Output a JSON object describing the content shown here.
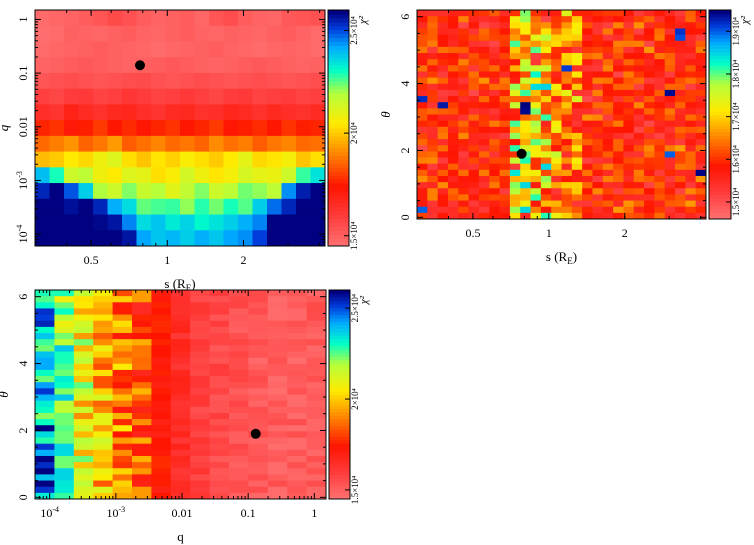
{
  "chart_data": [
    {
      "id": "s_q",
      "type": "heatmap",
      "xlabel": "s (R",
      "xlabel_sub": "E",
      "xlabel_close": ")",
      "ylabel": "q",
      "xscale": "log",
      "yscale": "log",
      "xlim": [
        0.3,
        4.2
      ],
      "ylim": [
        6e-05,
        1.5
      ],
      "x_ticks": [
        0.5,
        1,
        2
      ],
      "x_tick_labels": [
        "0.5",
        "1",
        "2"
      ],
      "y_ticks": [
        0.0001,
        0.001,
        0.01,
        0.1,
        1
      ],
      "y_tick_labels": [
        [
          "10",
          "-4"
        ],
        [
          "10",
          "-3"
        ],
        [
          "0.01",
          ""
        ],
        [
          "0.1",
          ""
        ],
        [
          "1",
          ""
        ]
      ],
      "best_fit": {
        "x": 0.78,
        "y": 0.14
      },
      "colorbar": {
        "label": "χ²",
        "min": 14500,
        "max": 26000,
        "tick_values": [
          15000,
          20000,
          25000
        ],
        "tick_labels": [
          "1.5×10⁴",
          "2×10⁴",
          "2.5×10⁴"
        ]
      },
      "grid": {
        "nx": 20,
        "ny": 15,
        "x_start": 0.3,
        "x_end": 4.2,
        "y_start": 6e-05,
        "y_end": 1.5,
        "values": [
          [
            14600,
            14700,
            14800,
            15000,
            15200,
            15500,
            15300,
            15000,
            14800,
            14900,
            15000,
            14700,
            15200,
            15400,
            15000,
            14800,
            14700,
            15100,
            15200,
            15300
          ],
          [
            14500,
            14600,
            14900,
            14800,
            14700,
            14900,
            15000,
            14800,
            14700,
            14900,
            15000,
            14800,
            14700,
            14900,
            14800,
            14700,
            14900,
            15000,
            14800,
            14600
          ],
          [
            14600,
            14700,
            14800,
            14900,
            15000,
            14900,
            14800,
            14700,
            14600,
            14700,
            14800,
            14900,
            15000,
            14800,
            14700,
            14600,
            14700,
            14800,
            14700,
            14600
          ],
          [
            14800,
            14900,
            15000,
            15100,
            15000,
            14900,
            14800,
            14900,
            15000,
            15100,
            15000,
            14900,
            14800,
            14900,
            15000,
            15100,
            15000,
            14900,
            14800,
            14900
          ],
          [
            15200,
            15300,
            15400,
            15300,
            15200,
            15300,
            15400,
            15500,
            15300,
            15200,
            15300,
            15400,
            15300,
            15200,
            15300,
            15400,
            15300,
            15200,
            15300,
            15400
          ],
          [
            15800,
            15600,
            15900,
            16000,
            15700,
            15800,
            16100,
            15900,
            15700,
            15800,
            16000,
            15800,
            15600,
            15900,
            16000,
            15700,
            15800,
            15900,
            15700,
            15800
          ],
          [
            16400,
            16200,
            16800,
            16500,
            16300,
            16600,
            16700,
            16400,
            16200,
            16500,
            16600,
            16300,
            16400,
            16700,
            16500,
            16300,
            16600,
            16400,
            16300,
            16500
          ],
          [
            17600,
            17800,
            17200,
            17500,
            17900,
            17400,
            17700,
            17300,
            17600,
            17800,
            17400,
            17600,
            17900,
            17300,
            17500,
            17700,
            17400,
            17800,
            17500,
            17600
          ],
          [
            18600,
            18900,
            19200,
            18500,
            18800,
            19300,
            18400,
            18700,
            19000,
            18600,
            18800,
            18500,
            19100,
            18700,
            18900,
            18400,
            18800,
            19000,
            18600,
            18700
          ],
          [
            19800,
            20000,
            20500,
            20200,
            20800,
            21200,
            20300,
            19900,
            20400,
            20100,
            20600,
            20300,
            20000,
            20500,
            21000,
            20200,
            20400,
            20700,
            19900,
            20300
          ],
          [
            24000,
            23000,
            21500,
            21800,
            20800,
            20500,
            21200,
            21000,
            20300,
            20600,
            21400,
            20800,
            20400,
            20700,
            21300,
            21000,
            20900,
            21500,
            22800,
            23500
          ],
          [
            25500,
            26000,
            25000,
            23800,
            22000,
            21500,
            22300,
            21600,
            21900,
            21100,
            21700,
            22300,
            21500,
            21800,
            22400,
            22200,
            21800,
            24500,
            25600,
            26000
          ],
          [
            26000,
            26000,
            25800,
            26000,
            25500,
            24200,
            23600,
            22500,
            22700,
            22800,
            22200,
            22900,
            22400,
            23000,
            22600,
            23800,
            24800,
            25500,
            26000,
            26000
          ],
          [
            26000,
            26000,
            26000,
            26000,
            25900,
            25700,
            24600,
            23600,
            23900,
            23400,
            23700,
            23200,
            23500,
            23800,
            24200,
            24600,
            26000,
            26000,
            26000,
            26000
          ],
          [
            26000,
            26000,
            26000,
            26000,
            26000,
            26000,
            25700,
            24300,
            23900,
            24100,
            23800,
            24200,
            23900,
            24300,
            24500,
            25200,
            26000,
            26000,
            26000,
            26000
          ]
        ]
      }
    },
    {
      "id": "s_theta",
      "type": "heatmap",
      "xlabel": "s (R",
      "xlabel_sub": "E",
      "xlabel_close": ")",
      "ylabel": "θ",
      "xscale": "log",
      "yscale": "linear",
      "xlim": [
        0.3,
        4.2
      ],
      "ylim": [
        -0.05,
        6.2
      ],
      "x_ticks": [
        0.5,
        1,
        2
      ],
      "x_tick_labels": [
        "0.5",
        "1",
        "2"
      ],
      "y_ticks": [
        0,
        2,
        4,
        6
      ],
      "y_tick_labels": [
        "0",
        "2",
        "4",
        "6"
      ],
      "best_fit": {
        "x": 0.78,
        "y": 1.9
      },
      "colorbar": {
        "label": "χ²",
        "min": 14600,
        "max": 19500,
        "tick_values": [
          15000,
          16000,
          17000,
          18000,
          19000
        ],
        "tick_labels": [
          "1.5×10⁴",
          "1.6×10⁴",
          "1.7×10⁴",
          "1.8×10⁴",
          "1.9×10⁴"
        ]
      },
      "grid": {
        "nx": 28,
        "ny": 34,
        "seed": 11,
        "x_start": 0.3,
        "x_end": 4.2,
        "y_start": -0.05,
        "y_end": 6.2
      }
    },
    {
      "id": "q_theta",
      "type": "heatmap",
      "xlabel": "q",
      "xlabel_sub": "",
      "xlabel_close": "",
      "ylabel": "θ",
      "xscale": "log",
      "yscale": "linear",
      "xlim": [
        6e-05,
        1.5
      ],
      "ylim": [
        -0.05,
        6.2
      ],
      "x_ticks": [
        0.0001,
        0.001,
        0.01,
        0.1,
        1
      ],
      "x_tick_labels": [
        [
          "10",
          "-4"
        ],
        [
          "10",
          "-3"
        ],
        [
          "0.01",
          ""
        ],
        [
          "0.1",
          ""
        ],
        [
          "1",
          ""
        ]
      ],
      "y_ticks": [
        0,
        2,
        4,
        6
      ],
      "y_tick_labels": [
        "0",
        "2",
        "4",
        "6"
      ],
      "best_fit": {
        "x": 0.13,
        "y": 1.9
      },
      "colorbar": {
        "label": "χ²",
        "min": 14500,
        "max": 26000,
        "tick_values": [
          15000,
          20000,
          25000
        ],
        "tick_labels": [
          "1.5×10⁴",
          "2×10⁴",
          "2.5×10⁴"
        ]
      },
      "grid": {
        "nx": 15,
        "ny": 34,
        "seed": 29,
        "x_start": 6e-05,
        "x_end": 1.5,
        "y_start": -0.05,
        "y_end": 6.2
      }
    }
  ]
}
